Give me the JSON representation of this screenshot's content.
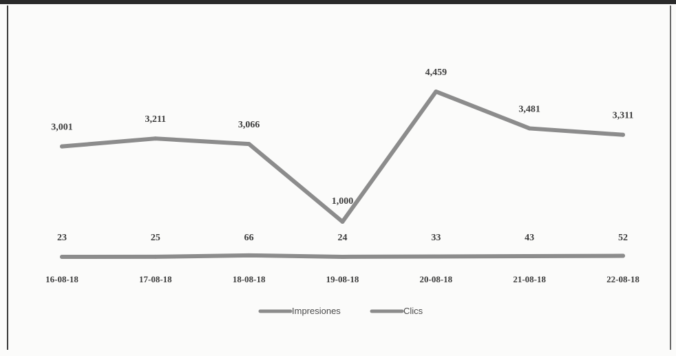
{
  "chart_data": {
    "type": "line",
    "title": "",
    "xlabel": "",
    "ylabel": "",
    "categories": [
      "16-08-18",
      "17-08-18",
      "18-08-18",
      "19-08-18",
      "20-08-18",
      "21-08-18",
      "22-08-18"
    ],
    "series": [
      {
        "name": "Impresiones",
        "values": [
          3001,
          3211,
          3066,
          1000,
          4459,
          3481,
          3311
        ],
        "labels": [
          "3,001",
          "3,211",
          "3,066",
          "1,000",
          "4,459",
          "3,481",
          "3,311"
        ],
        "color": "#8c8c8c"
      },
      {
        "name": "Clics",
        "values": [
          23,
          25,
          66,
          24,
          33,
          43,
          52
        ],
        "labels": [
          "23",
          "25",
          "66",
          "24",
          "33",
          "43",
          "52"
        ],
        "color": "#8c8c8c"
      }
    ],
    "ylim": [
      0,
      5000
    ],
    "grid": false,
    "legend_position": "bottom"
  }
}
